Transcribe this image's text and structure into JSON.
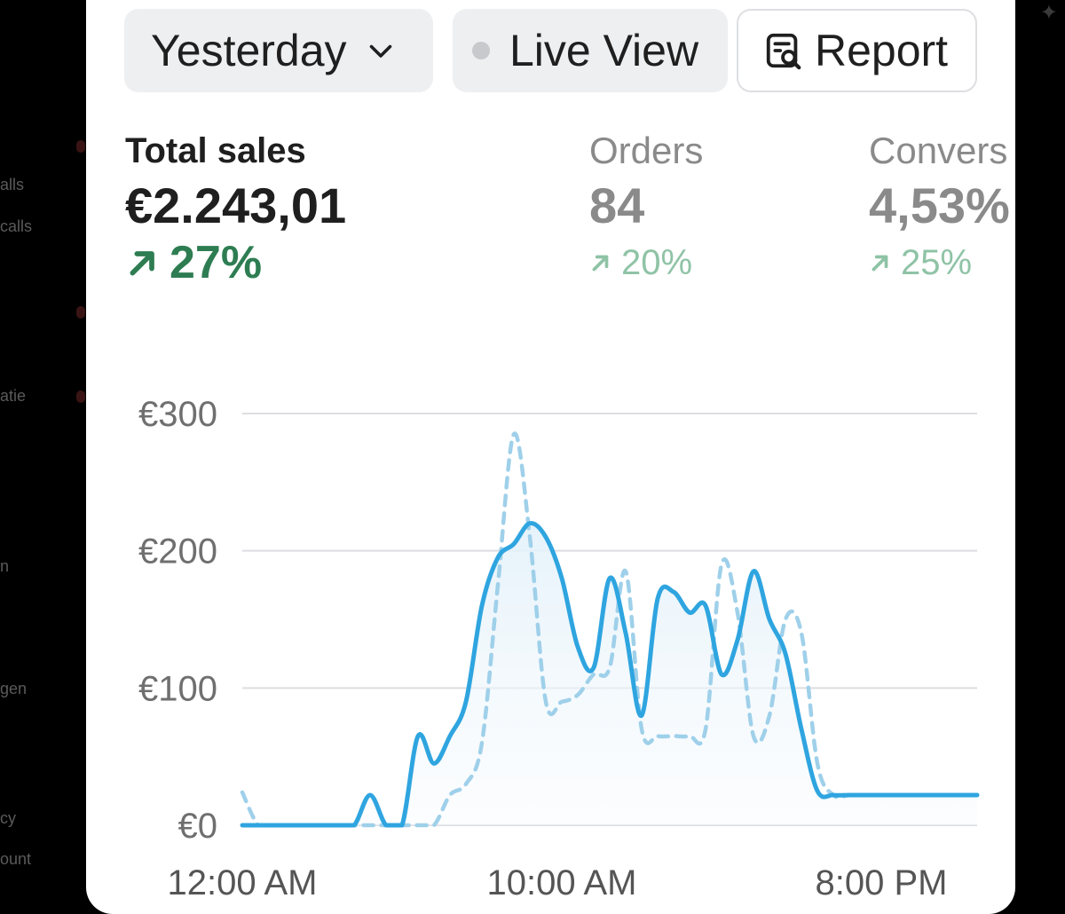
{
  "background_sidebar": {
    "items": [
      "alls",
      "calls",
      "atie",
      "n",
      "gen",
      "cy",
      "ount"
    ]
  },
  "toolbar": {
    "date_range": "Yesterday",
    "live_view": "Live View",
    "report": "Report"
  },
  "metrics": {
    "total_sales": {
      "label": "Total sales",
      "value": "€2.243,01",
      "change": "27%"
    },
    "orders": {
      "label": "Orders",
      "value": "84",
      "change": "20%"
    },
    "conversion": {
      "label": "Convers",
      "value": "4,53%",
      "change": "25%"
    }
  },
  "colors": {
    "series_current": "#2fa5e0",
    "series_comparison": "#9fd0ea",
    "trend_up": "#2e7d52",
    "trend_up_muted": "#8fc3a6"
  },
  "chart_data": {
    "type": "line",
    "ylim": [
      0,
      300
    ],
    "yticks": [
      "€300",
      "€200",
      "€100",
      "€0"
    ],
    "ytick_values": [
      300,
      200,
      100,
      0
    ],
    "xticks": [
      "12:00 AM",
      "10:00 AM",
      "8:00 PM"
    ],
    "xtick_hours": [
      0,
      10,
      20
    ],
    "x_range_hours": [
      0,
      23
    ],
    "series": [
      {
        "style": "solid",
        "x": [
          0,
          0.5,
          1,
          1.5,
          2,
          2.5,
          3,
          3.5,
          4,
          4.5,
          5,
          5.5,
          6,
          6.5,
          7,
          7.5,
          8,
          8.5,
          9,
          9.5,
          10,
          10.5,
          11,
          11.5,
          12,
          12.5,
          13,
          13.5,
          14,
          14.5,
          15,
          15.5,
          16,
          16.5,
          17,
          17.5,
          18,
          18.5,
          19,
          19.5,
          20,
          20.5,
          21,
          21.5,
          22,
          22.5,
          23
        ],
        "values": [
          0,
          0,
          0,
          0,
          0,
          0,
          0,
          0,
          22,
          0,
          0,
          65,
          45,
          65,
          90,
          160,
          195,
          205,
          220,
          210,
          180,
          130,
          115,
          180,
          140,
          80,
          165,
          170,
          155,
          160,
          110,
          135,
          185,
          150,
          125,
          70,
          25,
          22,
          22,
          22,
          22,
          22,
          22,
          22,
          22,
          22,
          22
        ]
      },
      {
        "style": "dashed",
        "x": [
          0,
          0.5,
          1,
          1.5,
          2,
          2.5,
          3,
          3.5,
          4,
          4.5,
          5,
          5.5,
          6,
          6.5,
          7,
          7.5,
          8,
          8.5,
          9,
          9.5,
          10,
          10.5,
          11,
          11.5,
          12,
          12.5,
          13,
          13.5,
          14,
          14.5,
          15,
          15.5,
          16,
          16.5,
          17,
          17.5,
          18,
          18.5,
          19,
          19.5,
          20,
          20.5,
          21,
          21.5,
          22,
          22.5,
          23
        ],
        "values": [
          24,
          0,
          0,
          0,
          0,
          0,
          0,
          0,
          0,
          0,
          0,
          0,
          0,
          22,
          30,
          60,
          175,
          285,
          210,
          90,
          90,
          95,
          110,
          115,
          185,
          70,
          65,
          65,
          65,
          70,
          190,
          155,
          65,
          80,
          150,
          140,
          45,
          22,
          22,
          22,
          22,
          22,
          22,
          22,
          22,
          22,
          22
        ]
      }
    ]
  }
}
